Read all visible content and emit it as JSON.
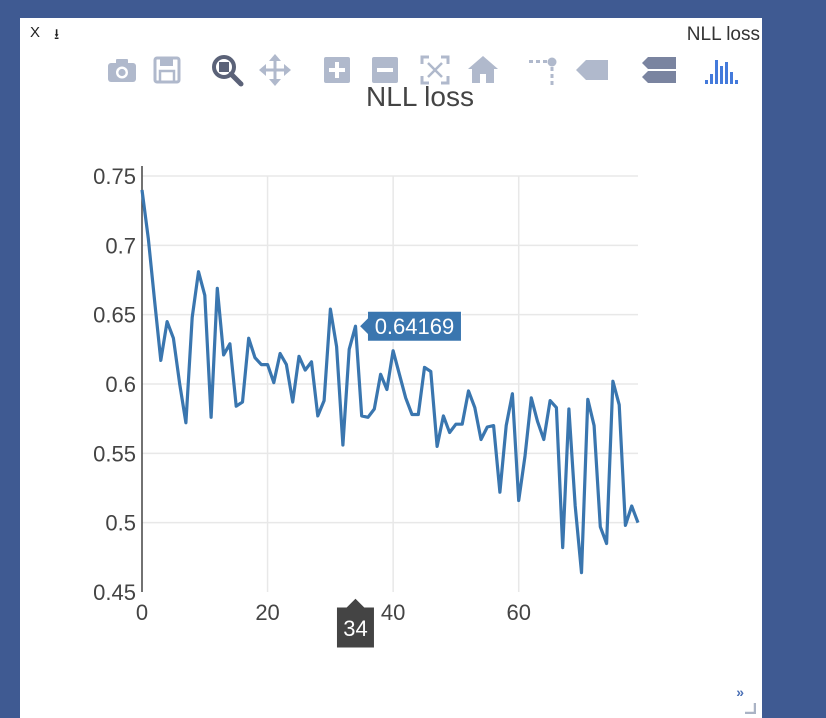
{
  "pane": {
    "close_label": "X",
    "download_label": "⭳",
    "title": "NLL loss",
    "expand_label": "»"
  },
  "modebar": {
    "buttons": [
      {
        "name": "camera-icon",
        "active": false
      },
      {
        "name": "save-icon",
        "active": false
      },
      {
        "name": "zoom-icon",
        "active": true
      },
      {
        "name": "pan-icon",
        "active": false
      },
      {
        "name": "zoom-in-icon",
        "active": false
      },
      {
        "name": "zoom-out-icon",
        "active": false
      },
      {
        "name": "autoscale-icon",
        "active": false
      },
      {
        "name": "home-icon",
        "active": false
      },
      {
        "name": "spike-lines-icon",
        "active": false
      },
      {
        "name": "hover-closest-icon",
        "active": false
      },
      {
        "name": "hover-compare-icon",
        "active": false
      },
      {
        "name": "plotly-logo-icon",
        "active": false
      }
    ]
  },
  "chart_data": {
    "type": "line",
    "title": "NLL loss",
    "xlabel": "",
    "ylabel": "",
    "xlim": [
      0,
      79
    ],
    "ylim": [
      0.45,
      0.75
    ],
    "x_ticks": [
      0,
      20,
      40,
      60
    ],
    "y_ticks": [
      0.45,
      0.5,
      0.55,
      0.6,
      0.65,
      0.7,
      0.75
    ],
    "y_tick_labels": [
      "0.45",
      "0.5",
      "0.55",
      "0.6",
      "0.65",
      "0.7",
      "0.75"
    ],
    "grid": true,
    "line_color": "#3a76af",
    "series": [
      {
        "values": [
          0.74,
          0.705,
          0.66,
          0.617,
          0.645,
          0.633,
          0.6,
          0.572,
          0.648,
          0.681,
          0.664,
          0.576,
          0.669,
          0.621,
          0.629,
          0.584,
          0.587,
          0.633,
          0.619,
          0.614,
          0.614,
          0.601,
          0.622,
          0.614,
          0.587,
          0.62,
          0.61,
          0.616,
          0.577,
          0.588,
          0.654,
          0.627,
          0.556,
          0.625,
          0.64169,
          0.577,
          0.576,
          0.582,
          0.607,
          0.596,
          0.624,
          0.607,
          0.59,
          0.578,
          0.578,
          0.612,
          0.609,
          0.555,
          0.577,
          0.565,
          0.571,
          0.571,
          0.595,
          0.583,
          0.56,
          0.569,
          0.57,
          0.522,
          0.57,
          0.593,
          0.516,
          0.548,
          0.59,
          0.573,
          0.56,
          0.588,
          0.583,
          0.482,
          0.582,
          0.512,
          0.464,
          0.589,
          0.57,
          0.497,
          0.485,
          0.602,
          0.585,
          0.498,
          0.512,
          0.5
        ]
      }
    ],
    "hover": {
      "x": 34,
      "y": 0.64169,
      "x_label": "34",
      "y_label": "0.64169"
    }
  }
}
